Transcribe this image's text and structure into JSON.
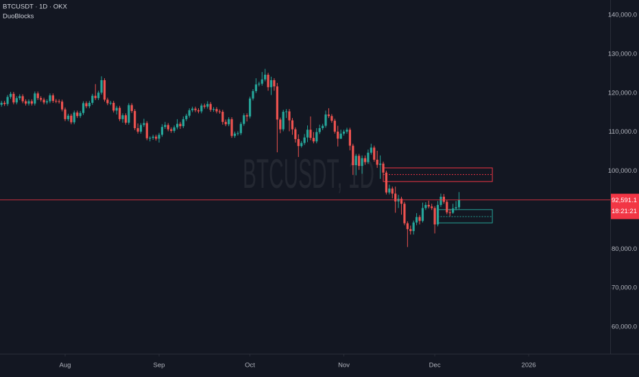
{
  "chart_data": {
    "type": "candlestick",
    "title": "BTCUSDT · 1D · OKX",
    "indicator": "DuoBlocks",
    "watermark": "BTCUSDT, 1D",
    "up_color": "#26a69a",
    "down_color": "#ef5350",
    "open": [
      117000,
      117500,
      117200,
      119000,
      119800,
      117600,
      118700,
      119200,
      117900,
      117300,
      117900,
      117300,
      119900,
      118700,
      118300,
      117600,
      117900,
      119400,
      118000,
      117900,
      117800,
      115800,
      113300,
      114200,
      112500,
      115000,
      114100,
      114900,
      117400,
      116600,
      117500,
      119300,
      118700,
      120100,
      123300,
      118300,
      117400,
      117500,
      115500,
      116200,
      113300,
      114300,
      112400,
      116900,
      115400,
      111000,
      110100,
      111800,
      112300,
      108400,
      108500,
      108800,
      108300,
      109300,
      111300,
      111800,
      110700,
      110300,
      111200,
      112100,
      111500,
      113300,
      114200,
      115600,
      116000,
      115600,
      115300,
      116800,
      116500,
      117200,
      115700,
      115900,
      115300,
      115200,
      112600,
      112000,
      113300,
      109000,
      109600,
      109700,
      112100,
      114300,
      114000,
      118600,
      120500,
      122200,
      122400,
      123500,
      124700,
      121500,
      123300,
      121700,
      113200,
      110700,
      115200,
      115300,
      113000,
      110700,
      108200,
      106400,
      107200,
      108600,
      110600,
      108500,
      107600,
      110000,
      111000,
      111600,
      114500,
      114100,
      112900,
      110100,
      108300,
      109600,
      110100,
      110600,
      106500,
      101500,
      103900,
      101300,
      103300,
      102300,
      104700,
      106000,
      102900,
      101600,
      101900,
      99600,
      94500,
      95500,
      94200,
      92200,
      92900,
      91600,
      86600,
      85100,
      84600,
      86800,
      88200,
      87200,
      90500,
      91300,
      90900,
      90500,
      86300,
      91300,
      93400,
      92100,
      89400,
      89300,
      90400,
      90700
    ],
    "high": [
      118000,
      118000,
      119500,
      120300,
      120300,
      119200,
      119700,
      119700,
      118400,
      118400,
      118400,
      120400,
      120400,
      119200,
      118800,
      118400,
      119900,
      119900,
      118500,
      118400,
      118300,
      116300,
      114700,
      114700,
      115500,
      115500,
      115400,
      117900,
      117900,
      118000,
      119800,
      122300,
      120600,
      124300,
      123800,
      118800,
      118000,
      118000,
      116700,
      116700,
      114800,
      114800,
      117400,
      117400,
      115900,
      112200,
      112300,
      113400,
      112800,
      108900,
      109300,
      109300,
      109800,
      112000,
      112600,
      112300,
      111200,
      111700,
      113300,
      112600,
      114000,
      114700,
      116100,
      116500,
      116500,
      116100,
      117300,
      117300,
      117900,
      117700,
      116400,
      116400,
      115800,
      115700,
      113200,
      113800,
      113800,
      110100,
      110200,
      112600,
      114800,
      114800,
      119100,
      121000,
      123800,
      122900,
      125400,
      126200,
      125200,
      124200,
      123800,
      122600,
      113700,
      115700,
      115900,
      115900,
      113600,
      111200,
      109400,
      107700,
      109500,
      111700,
      114000,
      110000,
      111000,
      111900,
      112100,
      115500,
      116100,
      114600,
      113400,
      111600,
      110600,
      110600,
      111100,
      111100,
      107000,
      104400,
      104400,
      104000,
      104000,
      105500,
      107000,
      106500,
      105200,
      104000,
      102400,
      100100,
      96500,
      96000,
      96000,
      93900,
      93400,
      92100,
      87100,
      86000,
      87300,
      89200,
      88700,
      91900,
      92000,
      92400,
      91600,
      91000,
      92300,
      94200,
      94100,
      92600,
      90300,
      91600,
      92300,
      94600
    ],
    "low": [
      116500,
      116700,
      116700,
      118500,
      117100,
      117100,
      118200,
      117400,
      116800,
      116800,
      116800,
      116800,
      118200,
      117800,
      117100,
      117100,
      117400,
      117500,
      117400,
      117300,
      115300,
      112800,
      112800,
      112000,
      112000,
      113600,
      113600,
      114400,
      116100,
      116100,
      117000,
      118200,
      118200,
      119600,
      117800,
      116900,
      116900,
      115000,
      114500,
      112800,
      112400,
      111900,
      111900,
      114900,
      110500,
      109600,
      109600,
      111300,
      107900,
      107600,
      108000,
      107800,
      107300,
      108800,
      110800,
      110200,
      109800,
      109800,
      110700,
      110800,
      111000,
      112800,
      113700,
      115100,
      115100,
      114800,
      114800,
      116000,
      116000,
      115200,
      115200,
      114800,
      114700,
      111900,
      111500,
      111500,
      108500,
      108500,
      109100,
      109200,
      111600,
      112700,
      113500,
      118100,
      120000,
      121700,
      121900,
      123000,
      120600,
      119500,
      120600,
      104800,
      109700,
      110200,
      113600,
      110200,
      109300,
      107300,
      103600,
      106000,
      106700,
      107400,
      107900,
      107100,
      107100,
      109500,
      110500,
      111100,
      113600,
      112400,
      109600,
      106300,
      108200,
      109100,
      109600,
      105300,
      99000,
      98900,
      100300,
      99300,
      101600,
      101800,
      104200,
      102400,
      100800,
      98000,
      98900,
      94000,
      94000,
      93000,
      89300,
      90500,
      88800,
      86100,
      80500,
      83700,
      83700,
      86100,
      86300,
      86800,
      90000,
      90400,
      90000,
      84000,
      85800,
      90800,
      91600,
      88900,
      88400,
      89000,
      89900,
      90200
    ],
    "close": [
      117500,
      117200,
      119000,
      119800,
      117600,
      118700,
      119200,
      117900,
      117300,
      117900,
      117300,
      119900,
      118700,
      118300,
      117600,
      117900,
      119400,
      118000,
      117900,
      117800,
      115800,
      113300,
      114200,
      112500,
      115000,
      114100,
      114900,
      117400,
      116600,
      117500,
      119300,
      118700,
      120100,
      123300,
      118300,
      117400,
      117500,
      115500,
      116200,
      113300,
      114300,
      112400,
      116900,
      115400,
      111000,
      110100,
      111800,
      112300,
      108400,
      108500,
      108800,
      108300,
      109300,
      111300,
      111800,
      110700,
      110300,
      111200,
      112100,
      111500,
      113300,
      114200,
      115600,
      116000,
      115600,
      115300,
      116800,
      116500,
      117200,
      115700,
      115900,
      115300,
      115200,
      112600,
      112000,
      113300,
      109000,
      109600,
      109700,
      112100,
      114300,
      114000,
      118600,
      120500,
      122200,
      122400,
      123500,
      124700,
      121500,
      123300,
      121700,
      113200,
      110700,
      115200,
      115300,
      113000,
      110700,
      108200,
      106400,
      107200,
      108600,
      110600,
      108500,
      107600,
      110000,
      111000,
      111600,
      114500,
      114100,
      112900,
      110100,
      108300,
      109600,
      110100,
      110600,
      106500,
      101500,
      103900,
      101300,
      103300,
      102300,
      104700,
      106000,
      102900,
      101600,
      101900,
      99600,
      94500,
      95500,
      94200,
      92200,
      92900,
      91600,
      86600,
      85100,
      84600,
      86800,
      88200,
      87200,
      90500,
      91300,
      90900,
      90500,
      86300,
      91300,
      93400,
      92100,
      89400,
      89300,
      90400,
      90700,
      92591.1
    ],
    "last_label": "92,591.1",
    "countdown": "18:21:21",
    "price_line_color": "#f23645",
    "zones": [
      {
        "color": "#f23645",
        "from": 126,
        "to": 162,
        "top": 100800,
        "bottom": 97300,
        "mid": 99100
      },
      {
        "color": "#26a69a",
        "from": 144,
        "to": 162,
        "top": 90100,
        "bottom": 86700,
        "mid": 88300
      }
    ],
    "xlim": [
      -0.5,
      200.9
    ],
    "xticks": [
      {
        "value": 21,
        "label": "Aug"
      },
      {
        "value": 52,
        "label": "Sep"
      },
      {
        "value": 82,
        "label": "Oct"
      },
      {
        "value": 113,
        "label": "Nov"
      },
      {
        "value": 143,
        "label": "Dec"
      },
      {
        "value": 174,
        "label": "2026"
      }
    ],
    "ylim": [
      53140,
      143870
    ],
    "yticks": [
      {
        "value": 60000,
        "label": "60,000.0"
      },
      {
        "value": 70000,
        "label": "70,000.0"
      },
      {
        "value": 80000,
        "label": "80,000.0"
      },
      {
        "value": 100000,
        "label": "100,000.0"
      },
      {
        "value": 110000,
        "label": "110,000.0"
      },
      {
        "value": 120000,
        "label": "120,000.0"
      },
      {
        "value": 130000,
        "label": "130,000.0"
      },
      {
        "value": 140000,
        "label": "140,000.0"
      }
    ]
  }
}
